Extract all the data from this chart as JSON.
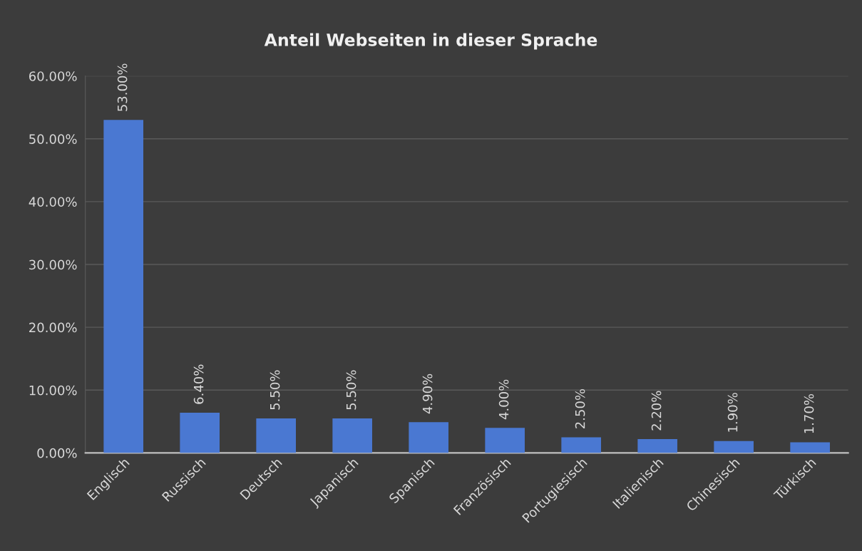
{
  "chart_data": {
    "type": "bar",
    "title": "Anteil Webseiten in dieser Sprache",
    "categories": [
      "Englisch",
      "Russisch",
      "Deutsch",
      "Japanisch",
      "Spanisch",
      "Französisch",
      "Portugiesisch",
      "Italienisch",
      "Chinesisch",
      "Türkisch"
    ],
    "values": [
      53.0,
      6.4,
      5.5,
      5.5,
      4.9,
      4.0,
      2.5,
      2.2,
      1.9,
      1.7
    ],
    "value_labels": [
      "53.00%",
      "6.40%",
      "5.50%",
      "5.50%",
      "4.90%",
      "4.00%",
      "2.50%",
      "2.20%",
      "1.90%",
      "1.70%"
    ],
    "color": "#4a78d2",
    "ylim": [
      0,
      60
    ],
    "yticks": [
      {
        "value": 0,
        "label": "0.00%"
      },
      {
        "value": 10,
        "label": "10.00%"
      },
      {
        "value": 20,
        "label": "20.00%"
      },
      {
        "value": 30,
        "label": "30.00%"
      },
      {
        "value": 40,
        "label": "40.00%"
      },
      {
        "value": 50,
        "label": "50.00%"
      },
      {
        "value": 60,
        "label": "60.00%"
      }
    ],
    "grid": "y",
    "legend": false
  }
}
